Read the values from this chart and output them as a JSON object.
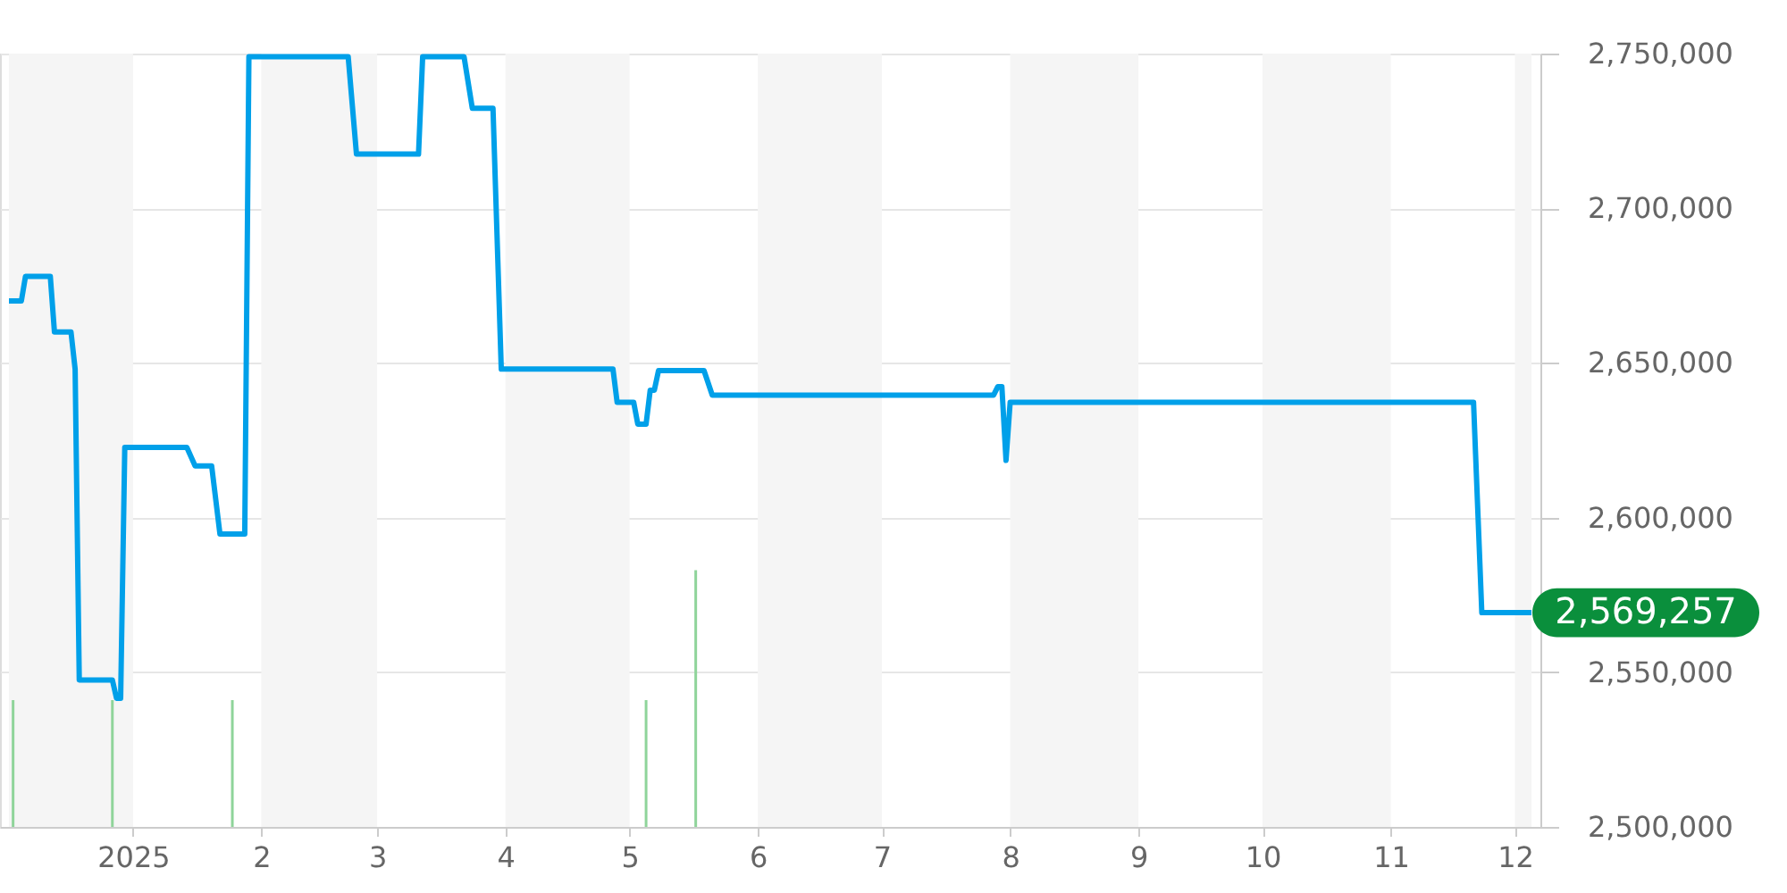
{
  "chart_data": {
    "type": "line",
    "xlim": [
      "2024-12-02",
      "2025-12-05"
    ],
    "xticks": [
      {
        "value": "2025-01-01",
        "label": "2025"
      },
      {
        "value": "2025-02-01",
        "label": "2"
      },
      {
        "value": "2025-03-01",
        "label": "3"
      },
      {
        "value": "2025-04-01",
        "label": "4"
      },
      {
        "value": "2025-05-01",
        "label": "5"
      },
      {
        "value": "2025-06-01",
        "label": "6"
      },
      {
        "value": "2025-07-01",
        "label": "7"
      },
      {
        "value": "2025-08-01",
        "label": "8"
      },
      {
        "value": "2025-09-01",
        "label": "9"
      },
      {
        "value": "2025-10-01",
        "label": "10"
      },
      {
        "value": "2025-11-01",
        "label": "11"
      },
      {
        "value": "2025-12-01",
        "label": "12"
      }
    ],
    "ylim": [
      2500000,
      2750000
    ],
    "yticks": [
      {
        "value": 2500000,
        "label": "2,500,000"
      },
      {
        "value": 2550000,
        "label": "2,550,000"
      },
      {
        "value": 2600000,
        "label": "2,600,000"
      },
      {
        "value": 2650000,
        "label": "2,650,000"
      },
      {
        "value": 2700000,
        "label": "2,700,000"
      },
      {
        "value": 2750000,
        "label": "2,750,000"
      }
    ],
    "grid": "y",
    "bands": [
      {
        "axis": "x",
        "from": "2024-12-02",
        "to": "2025-01-01",
        "color": "#f5f5f5"
      },
      {
        "axis": "x",
        "from": "2025-02-01",
        "to": "2025-03-01",
        "color": "#f5f5f5"
      },
      {
        "axis": "x",
        "from": "2025-04-01",
        "to": "2025-05-01",
        "color": "#f5f5f5"
      },
      {
        "axis": "x",
        "from": "2025-06-01",
        "to": "2025-07-01",
        "color": "#f5f5f5"
      },
      {
        "axis": "x",
        "from": "2025-08-01",
        "to": "2025-09-01",
        "color": "#f5f5f5"
      },
      {
        "axis": "x",
        "from": "2025-10-01",
        "to": "2025-11-01",
        "color": "#f5f5f5"
      },
      {
        "axis": "x",
        "from": "2025-12-01",
        "to": "2025-12-05",
        "color": "#f5f5f5"
      }
    ],
    "series": [
      {
        "type": "bar",
        "color": "#8fd49a",
        "x": [
          "2024-12-03",
          "2024-12-27",
          "2025-01-25",
          "2025-05-05",
          "2025-05-17"
        ],
        "values": [
          2541000,
          2541000,
          2541000,
          2541000,
          2583000
        ]
      },
      {
        "color": "#00a0e9",
        "x": [
          "2024-12-02",
          "2024-12-05",
          "2024-12-06",
          "2024-12-12",
          "2024-12-13",
          "2024-12-17",
          "2024-12-18",
          "2024-12-19",
          "2024-12-27",
          "2024-12-28",
          "2024-12-29",
          "2024-12-30",
          "2025-01-14",
          "2025-01-16",
          "2025-01-20",
          "2025-01-22",
          "2025-01-28",
          "2025-01-29",
          "2025-02-22",
          "2025-02-24",
          "2025-03-11",
          "2025-03-12",
          "2025-03-22",
          "2025-03-24",
          "2025-03-29",
          "2025-03-31",
          "2025-04-27",
          "2025-04-28",
          "2025-05-02",
          "2025-05-03",
          "2025-05-05",
          "2025-05-06",
          "2025-05-07",
          "2025-05-08",
          "2025-05-19",
          "2025-05-21",
          "2025-07-28",
          "2025-07-29",
          "2025-07-30",
          "2025-07-31",
          "2025-08-01",
          "2025-11-21",
          "2025-11-23",
          "2025-12-05"
        ],
        "values": [
          2670000,
          2670000,
          2678000,
          2678000,
          2660000,
          2660000,
          2648000,
          2547500,
          2547500,
          2541600,
          2541600,
          2622700,
          2622700,
          2616700,
          2616700,
          2594700,
          2594700,
          2749000,
          2749000,
          2717500,
          2717500,
          2749000,
          2749000,
          2732300,
          2732300,
          2648000,
          2648000,
          2637300,
          2637300,
          2630200,
          2630200,
          2641200,
          2641200,
          2647500,
          2647500,
          2639600,
          2639600,
          2642300,
          2642300,
          2618500,
          2637300,
          2637300,
          2569257,
          2569257
        ],
        "value_labels": [
          null,
          null,
          null,
          null,
          null,
          null,
          null,
          null,
          null,
          null,
          null,
          null,
          null,
          null,
          null,
          null,
          null,
          null,
          null,
          null,
          null,
          null,
          null,
          null,
          null,
          null,
          null,
          null,
          null,
          null,
          null,
          null,
          null,
          null,
          null,
          null,
          null,
          null,
          null,
          null,
          null,
          null,
          null,
          "2,569,257"
        ]
      }
    ]
  }
}
